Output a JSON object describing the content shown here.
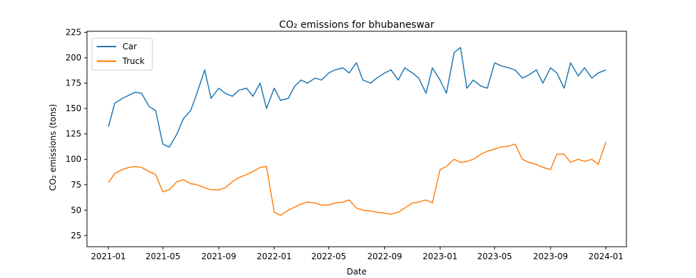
{
  "chart_data": {
    "type": "line",
    "title": "CO₂ emissions for bhubaneswar",
    "xlabel": "Date",
    "ylabel": "CO₂ emissions (tons)",
    "xlim": [
      "2020-11-15",
      "2024-02-15"
    ],
    "ylim": [
      14,
      226
    ],
    "x_ticks": [
      "2021-01",
      "2021-05",
      "2021-09",
      "2022-01",
      "2022-05",
      "2022-09",
      "2023-01",
      "2023-05",
      "2023-09",
      "2024-01"
    ],
    "y_ticks": [
      25,
      50,
      75,
      100,
      125,
      150,
      175,
      200,
      225
    ],
    "grid": false,
    "legend": "upper left",
    "colors": {
      "Car": "#1f77b4",
      "Truck": "#ff7f0e"
    },
    "series": [
      {
        "name": "Car",
        "x": [
          "2021-01-01",
          "2021-01-15",
          "2021-02-01",
          "2021-02-15",
          "2021-03-01",
          "2021-03-15",
          "2021-04-01",
          "2021-04-15",
          "2021-05-01",
          "2021-05-15",
          "2021-06-01",
          "2021-06-15",
          "2021-07-01",
          "2021-07-15",
          "2021-08-01",
          "2021-08-15",
          "2021-09-01",
          "2021-09-15",
          "2021-10-01",
          "2021-10-15",
          "2021-11-01",
          "2021-11-15",
          "2021-12-01",
          "2021-12-15",
          "2022-01-01",
          "2022-01-15",
          "2022-02-01",
          "2022-02-15",
          "2022-03-01",
          "2022-03-15",
          "2022-04-01",
          "2022-04-15",
          "2022-05-01",
          "2022-05-15",
          "2022-06-01",
          "2022-06-15",
          "2022-07-01",
          "2022-07-15",
          "2022-08-01",
          "2022-08-15",
          "2022-09-01",
          "2022-09-15",
          "2022-10-01",
          "2022-10-15",
          "2022-11-01",
          "2022-11-15",
          "2022-12-01",
          "2022-12-15",
          "2023-01-01",
          "2023-01-15",
          "2023-02-01",
          "2023-02-15",
          "2023-03-01",
          "2023-03-15",
          "2023-04-01",
          "2023-04-15",
          "2023-05-01",
          "2023-05-15",
          "2023-06-01",
          "2023-06-15",
          "2023-07-01",
          "2023-07-15",
          "2023-08-01",
          "2023-08-15",
          "2023-09-01",
          "2023-09-15",
          "2023-10-01",
          "2023-10-15",
          "2023-11-01",
          "2023-11-15",
          "2023-12-01",
          "2023-12-15",
          "2024-01-01"
        ],
        "values": [
          132,
          155,
          160,
          163,
          166,
          165,
          152,
          148,
          115,
          112,
          125,
          140,
          148,
          165,
          188,
          160,
          170,
          165,
          162,
          168,
          170,
          162,
          175,
          150,
          170,
          158,
          160,
          172,
          178,
          175,
          180,
          178,
          185,
          188,
          190,
          185,
          195,
          178,
          175,
          180,
          185,
          188,
          178,
          190,
          185,
          180,
          165,
          190,
          178,
          165,
          205,
          210,
          170,
          178,
          172,
          170,
          195,
          192,
          190,
          188,
          180,
          183,
          188,
          175,
          190,
          185,
          170,
          195,
          182,
          190,
          180,
          185,
          188
        ]
      },
      {
        "name": "Truck",
        "x": [
          "2021-01-01",
          "2021-01-15",
          "2021-02-01",
          "2021-02-15",
          "2021-03-01",
          "2021-03-15",
          "2021-04-01",
          "2021-04-15",
          "2021-05-01",
          "2021-05-15",
          "2021-06-01",
          "2021-06-15",
          "2021-07-01",
          "2021-07-15",
          "2021-08-01",
          "2021-08-15",
          "2021-09-01",
          "2021-09-15",
          "2021-10-01",
          "2021-10-15",
          "2021-11-01",
          "2021-11-15",
          "2021-12-01",
          "2021-12-15",
          "2022-01-01",
          "2022-01-15",
          "2022-02-01",
          "2022-02-15",
          "2022-03-01",
          "2022-03-15",
          "2022-04-01",
          "2022-04-15",
          "2022-05-01",
          "2022-05-15",
          "2022-06-01",
          "2022-06-15",
          "2022-07-01",
          "2022-07-15",
          "2022-08-01",
          "2022-08-15",
          "2022-09-01",
          "2022-09-15",
          "2022-10-01",
          "2022-10-15",
          "2022-11-01",
          "2022-11-15",
          "2022-12-01",
          "2022-12-15",
          "2023-01-01",
          "2023-01-15",
          "2023-02-01",
          "2023-02-15",
          "2023-03-01",
          "2023-03-15",
          "2023-04-01",
          "2023-04-15",
          "2023-05-01",
          "2023-05-15",
          "2023-06-01",
          "2023-06-15",
          "2023-07-01",
          "2023-07-15",
          "2023-08-01",
          "2023-08-15",
          "2023-09-01",
          "2023-09-15",
          "2023-10-01",
          "2023-10-15",
          "2023-11-01",
          "2023-11-15",
          "2023-12-01",
          "2023-12-15",
          "2024-01-01"
        ],
        "values": [
          77,
          86,
          90,
          92,
          93,
          92,
          88,
          85,
          68,
          70,
          78,
          80,
          76,
          75,
          72,
          70,
          70,
          72,
          78,
          82,
          85,
          88,
          92,
          93,
          48,
          45,
          50,
          53,
          56,
          58,
          57,
          55,
          55,
          57,
          58,
          60,
          52,
          50,
          49,
          48,
          47,
          46,
          48,
          52,
          57,
          58,
          60,
          57,
          90,
          93,
          100,
          97,
          98,
          100,
          105,
          108,
          110,
          112,
          113,
          115,
          100,
          97,
          95,
          92,
          90,
          105,
          105,
          97,
          100,
          98,
          100,
          95,
          117
        ]
      }
    ]
  }
}
